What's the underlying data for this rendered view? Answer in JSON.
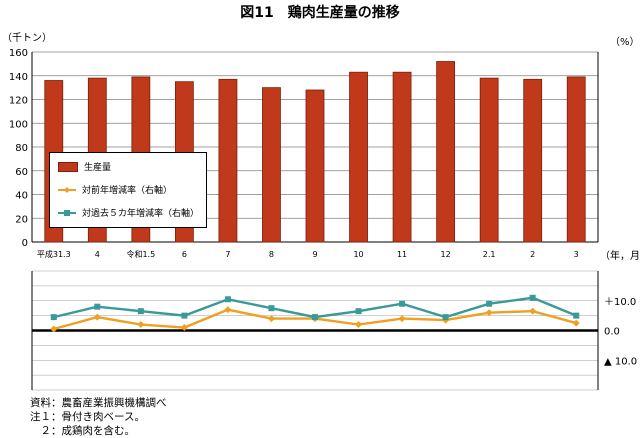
{
  "title": "図11　鶏肉生産量の推移",
  "units": {
    "left": "（千トン）",
    "right": "（%）",
    "x": "（年，月）"
  },
  "legend": {
    "bar": "生産量",
    "line1": "対前年増減率（右軸）",
    "line2": "対過去５カ年増減率（右軸）"
  },
  "colors": {
    "bar": "#c0391b",
    "bar_edge": "#7a1f0b",
    "line1": "#f0a020",
    "line2": "#3a9a9a"
  },
  "notes": [
    "資料：農畜産業振興機構調べ",
    "注１：骨付き肉ベース。",
    "　２：成鶏肉を含む。"
  ],
  "chart_data": {
    "type": "bar",
    "categories": [
      "平成31.3",
      "4",
      "令和1.5",
      "6",
      "7",
      "8",
      "9",
      "10",
      "11",
      "12",
      "2.1",
      "2",
      "3"
    ],
    "values": [
      136,
      138,
      139,
      135,
      137,
      130,
      128,
      143,
      143,
      152,
      138,
      137,
      139
    ],
    "ylim": [
      0,
      160
    ],
    "yticks": [
      0,
      20,
      40,
      60,
      80,
      100,
      120,
      140,
      160
    ],
    "y2": {
      "ticks": [
        10,
        0,
        -10
      ],
      "tick_labels": [
        "＋10.0",
        "0.0",
        "▲ 10.0"
      ],
      "ylim": [
        -20,
        20
      ]
    },
    "series": [
      {
        "name": "対前年増減率（右軸）",
        "values": [
          0.5,
          4.5,
          2,
          1,
          7,
          4,
          4,
          2,
          4,
          3.5,
          6,
          6.5,
          2.5
        ]
      },
      {
        "name": "対過去５カ年増減率（右軸）",
        "values": [
          4.5,
          8,
          6.5,
          5,
          10.5,
          7.5,
          4.5,
          6.5,
          9,
          4.5,
          9,
          11,
          5
        ]
      }
    ],
    "grid": true
  }
}
